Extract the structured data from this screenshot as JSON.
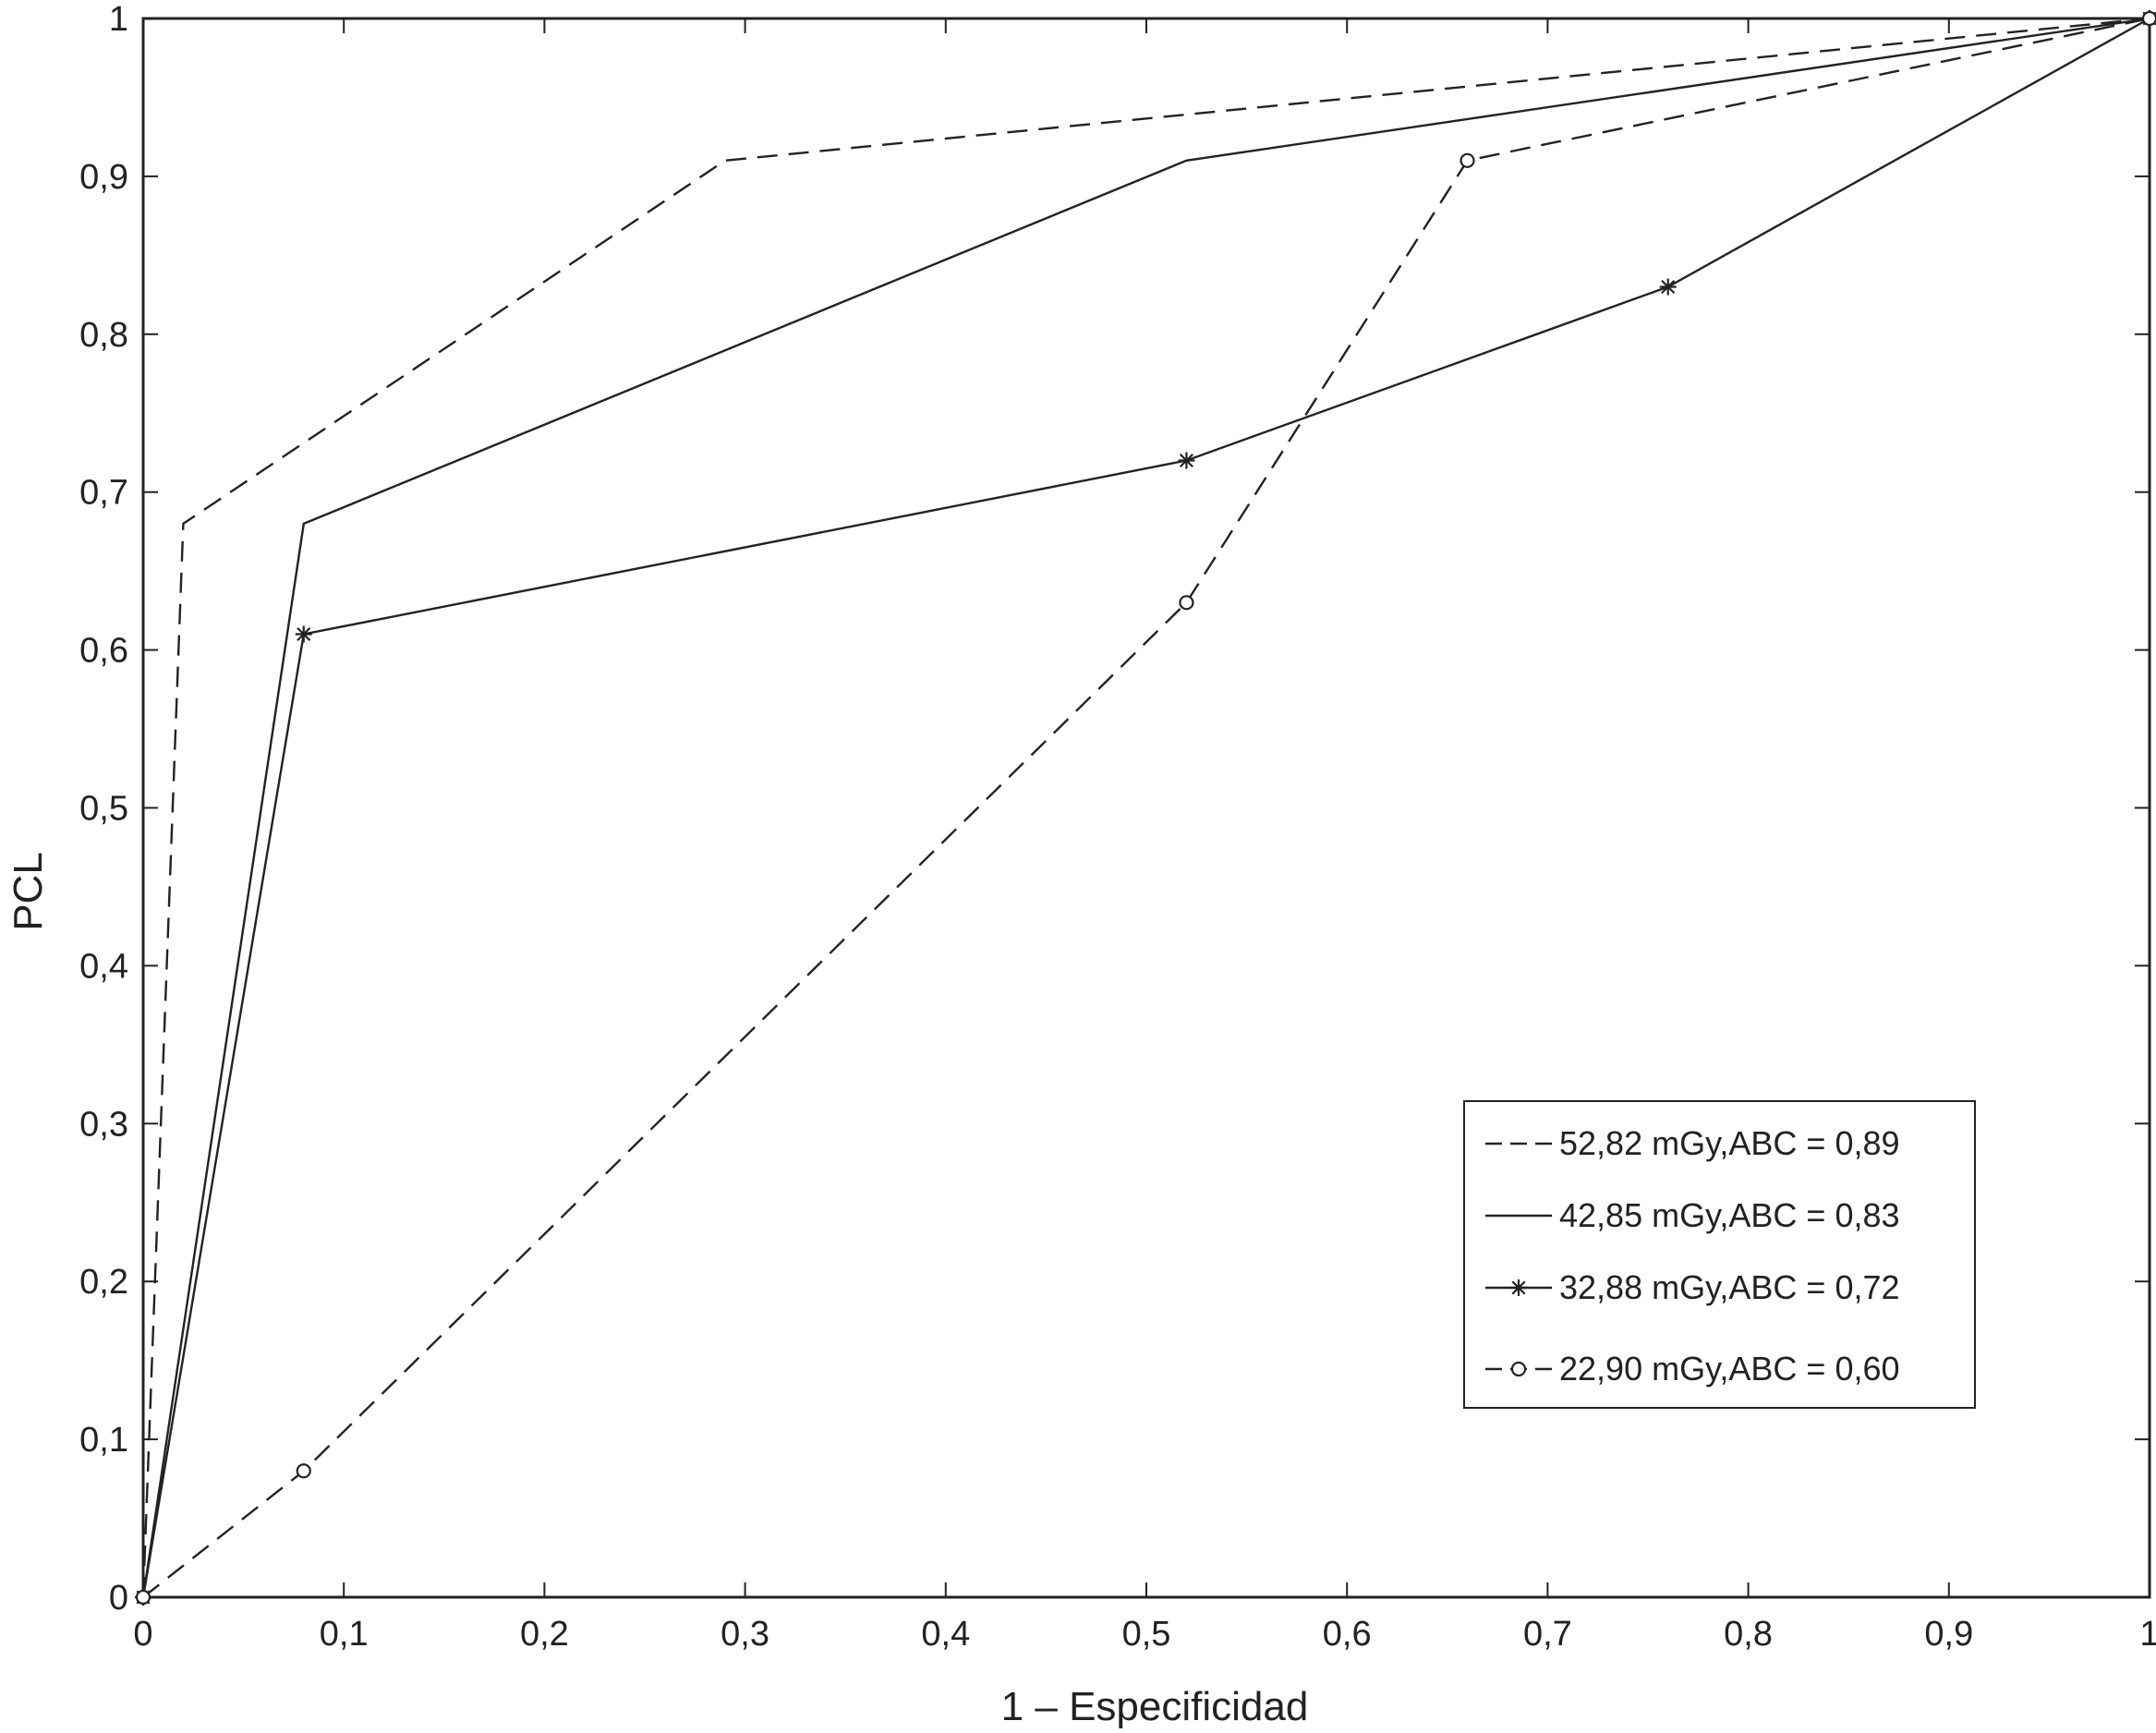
{
  "chart_data": {
    "type": "line",
    "xlabel": "1 – Especificidad",
    "ylabel": "PCL",
    "xlim": [
      0,
      1
    ],
    "ylim": [
      0,
      1
    ],
    "x_ticks": [
      "0",
      "0,1",
      "0,2",
      "0,3",
      "0,4",
      "0,5",
      "0,6",
      "0,7",
      "0,8",
      "0,9",
      "1"
    ],
    "y_ticks": [
      "0",
      "0,1",
      "0,2",
      "0,3",
      "0,4",
      "0,5",
      "0,6",
      "0,7",
      "0,8",
      "0,9",
      "1"
    ],
    "grid": false,
    "legend_position": "lower-right",
    "line_color": "#222222",
    "series": [
      {
        "name": "52,82 mGy,ABC = 0,89",
        "style": "dashed",
        "marker": "none",
        "x": [
          0,
          0.02,
          0.29,
          1
        ],
        "y": [
          0,
          0.68,
          0.91,
          1
        ]
      },
      {
        "name": "42,85 mGy,ABC = 0,83",
        "style": "solid",
        "marker": "none",
        "x": [
          0,
          0.08,
          0.52,
          1
        ],
        "y": [
          0,
          0.68,
          0.91,
          1
        ]
      },
      {
        "name": "32,88 mGy,ABC = 0,72",
        "style": "solid",
        "marker": "star",
        "x": [
          0,
          0.08,
          0.52,
          0.76,
          1
        ],
        "y": [
          0,
          0.61,
          0.72,
          0.83,
          1
        ]
      },
      {
        "name": "22,90 mGy,ABC = 0,60",
        "style": "dashed",
        "marker": "circle",
        "x": [
          0,
          0.08,
          0.52,
          0.66,
          1
        ],
        "y": [
          0,
          0.08,
          0.63,
          0.91,
          1
        ]
      }
    ]
  }
}
